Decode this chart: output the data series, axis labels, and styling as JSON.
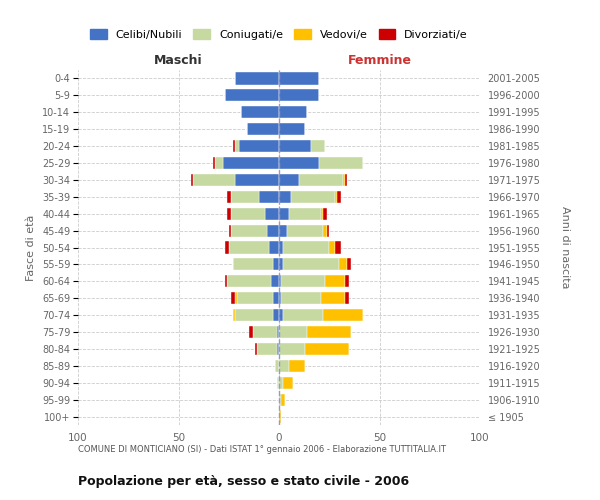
{
  "age_groups": [
    "100+",
    "95-99",
    "90-94",
    "85-89",
    "80-84",
    "75-79",
    "70-74",
    "65-69",
    "60-64",
    "55-59",
    "50-54",
    "45-49",
    "40-44",
    "35-39",
    "30-34",
    "25-29",
    "20-24",
    "15-19",
    "10-14",
    "5-9",
    "0-4"
  ],
  "birth_years": [
    "≤ 1905",
    "1906-1910",
    "1911-1915",
    "1916-1920",
    "1921-1925",
    "1926-1930",
    "1931-1935",
    "1936-1940",
    "1941-1945",
    "1946-1950",
    "1951-1955",
    "1956-1960",
    "1961-1965",
    "1966-1970",
    "1971-1975",
    "1976-1980",
    "1981-1985",
    "1986-1990",
    "1991-1995",
    "1996-2000",
    "2001-2005"
  ],
  "colors": {
    "celibe": "#4472c4",
    "coniugato": "#c5d9a0",
    "vedovo": "#ffc000",
    "divorziato": "#cc0000"
  },
  "male": {
    "celibe": [
      0,
      0,
      0,
      0,
      1,
      1,
      3,
      3,
      4,
      3,
      5,
      6,
      7,
      10,
      22,
      28,
      20,
      16,
      19,
      27,
      22
    ],
    "coniugato": [
      0,
      0,
      1,
      2,
      10,
      12,
      19,
      18,
      22,
      20,
      20,
      18,
      17,
      14,
      21,
      4,
      2,
      0,
      0,
      0,
      0
    ],
    "vedovo": [
      0,
      0,
      0,
      0,
      0,
      0,
      1,
      1,
      0,
      0,
      0,
      0,
      0,
      0,
      0,
      0,
      0,
      0,
      0,
      0,
      0
    ],
    "divorziato": [
      0,
      0,
      0,
      0,
      1,
      2,
      0,
      2,
      1,
      0,
      2,
      1,
      2,
      2,
      1,
      1,
      1,
      0,
      0,
      0,
      0
    ]
  },
  "female": {
    "nubile": [
      0,
      0,
      0,
      0,
      0,
      0,
      2,
      1,
      1,
      2,
      2,
      4,
      5,
      6,
      10,
      20,
      16,
      13,
      14,
      20,
      20
    ],
    "coniugata": [
      0,
      1,
      2,
      5,
      13,
      14,
      20,
      20,
      22,
      28,
      23,
      18,
      16,
      22,
      22,
      22,
      7,
      0,
      0,
      0,
      0
    ],
    "vedova": [
      1,
      2,
      5,
      8,
      22,
      22,
      20,
      12,
      10,
      4,
      3,
      2,
      1,
      1,
      1,
      0,
      0,
      0,
      0,
      0,
      0
    ],
    "divorziata": [
      0,
      0,
      0,
      0,
      0,
      0,
      0,
      2,
      2,
      2,
      3,
      1,
      2,
      2,
      1,
      0,
      0,
      0,
      0,
      0,
      0
    ]
  },
  "xlim": 100,
  "title": "Popolazione per età, sesso e stato civile - 2006",
  "subtitle": "COMUNE DI MONTICIANO (SI) - Dati ISTAT 1° gennaio 2006 - Elaborazione TUTTITALIA.IT",
  "xlabel_left": "Maschi",
  "xlabel_right": "Femmine",
  "ylabel_left": "Fasce di età",
  "ylabel_right": "Anni di nascita",
  "legend_labels": [
    "Celibi/Nubili",
    "Coniugati/e",
    "Vedovi/e",
    "Divorziati/e"
  ],
  "bg_color": "#ffffff",
  "grid_color": "#cccccc",
  "tick_color": "#666666",
  "bar_height": 0.72
}
